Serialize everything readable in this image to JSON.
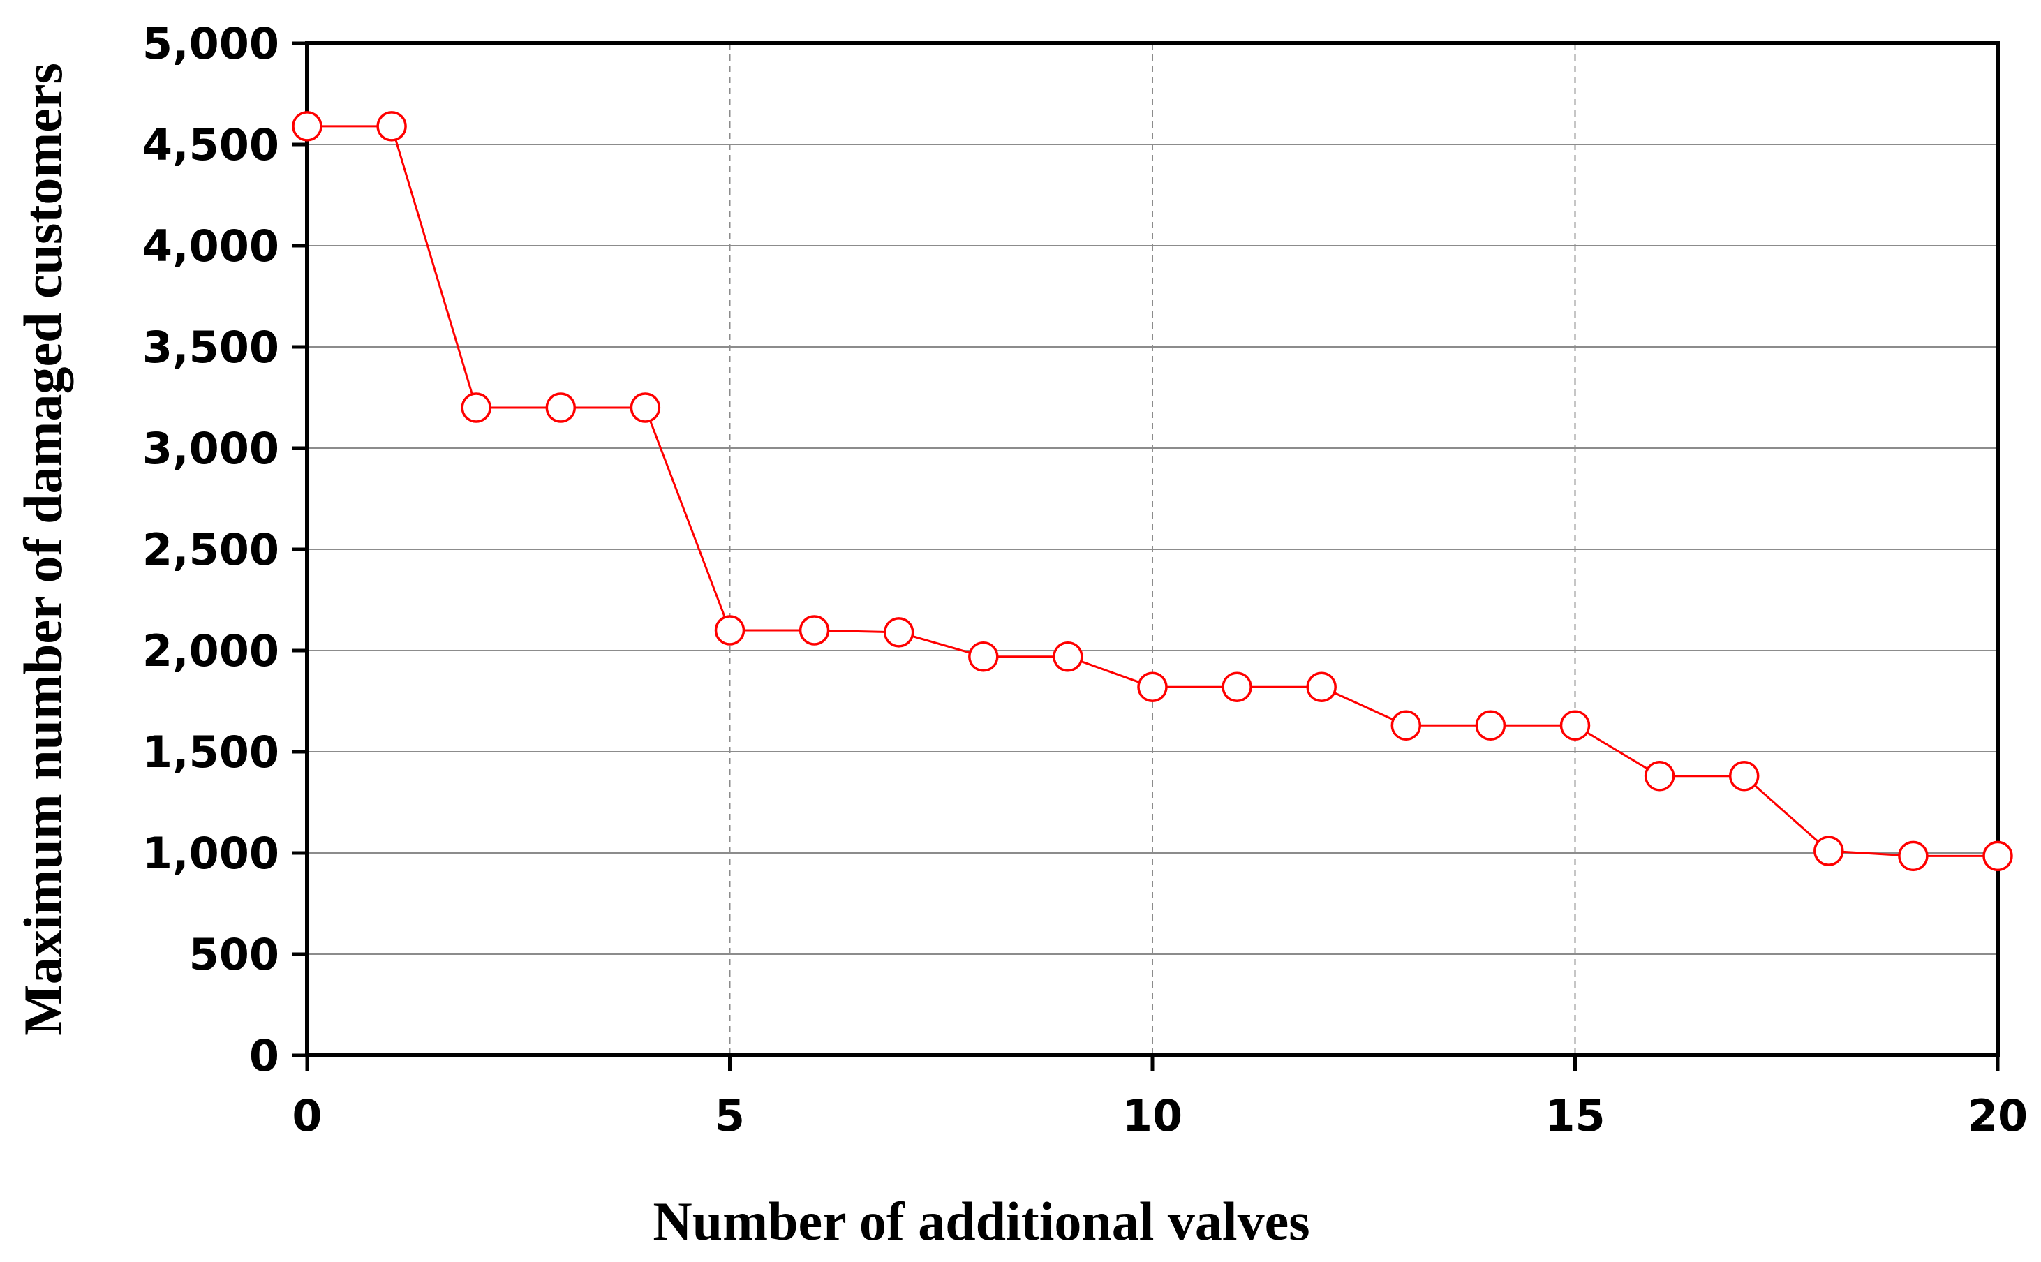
{
  "chart_data": {
    "type": "line",
    "title": "",
    "xlabel": "Number of additional valves",
    "ylabel": "Maximum number of damaged customers",
    "xlim": [
      0,
      20
    ],
    "ylim": [
      0,
      5000
    ],
    "x_ticks": [
      0,
      5,
      10,
      15,
      20
    ],
    "x_tick_labels": [
      "0",
      "5",
      "10",
      "15",
      "20"
    ],
    "y_ticks": [
      0,
      500,
      1000,
      1500,
      2000,
      2500,
      3000,
      3500,
      4000,
      4500,
      5000
    ],
    "y_tick_labels": [
      "0",
      "500",
      "1,000",
      "1,500",
      "2,000",
      "2,500",
      "3,000",
      "3,500",
      "4,000",
      "4,500",
      "5,000"
    ],
    "grid": {
      "horizontal": "solid",
      "vertical": "dashed"
    },
    "legend": "none",
    "series": [
      {
        "color": "#ff0000",
        "marker": "open-circle",
        "x": [
          0,
          1,
          2,
          3,
          4,
          5,
          6,
          7,
          8,
          9,
          10,
          11,
          12,
          13,
          14,
          15,
          16,
          17,
          18,
          19,
          20
        ],
        "y": [
          4590,
          4590,
          3200,
          3200,
          3200,
          2100,
          2100,
          2090,
          1970,
          1970,
          1820,
          1820,
          1820,
          1630,
          1630,
          1630,
          1380,
          1380,
          1010,
          985,
          985
        ]
      }
    ]
  }
}
